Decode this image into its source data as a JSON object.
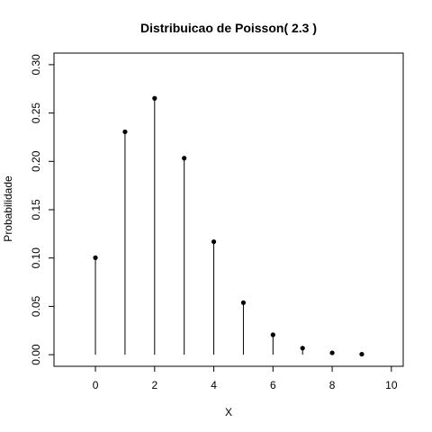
{
  "chart_data": {
    "type": "scatter",
    "style": "stem-with-points",
    "title": "Distribuicao de Poisson( 2.3 )",
    "xlabel": "X",
    "ylabel": "Probabilidade",
    "xlim": [
      -1.4,
      10.4
    ],
    "ylim": [
      -0.012,
      0.312
    ],
    "xticks": [
      "0",
      "2",
      "4",
      "6",
      "8",
      "10"
    ],
    "yticks": [
      "0.00",
      "0.05",
      "0.10",
      "0.15",
      "0.20",
      "0.25",
      "0.30"
    ],
    "x": [
      0,
      1,
      2,
      3,
      4,
      5,
      6,
      7,
      8,
      9
    ],
    "y": [
      0.1003,
      0.2306,
      0.2652,
      0.2033,
      0.1169,
      0.0538,
      0.0206,
      0.0068,
      0.0019,
      0.0005
    ],
    "grid": false,
    "color": "#000000"
  }
}
